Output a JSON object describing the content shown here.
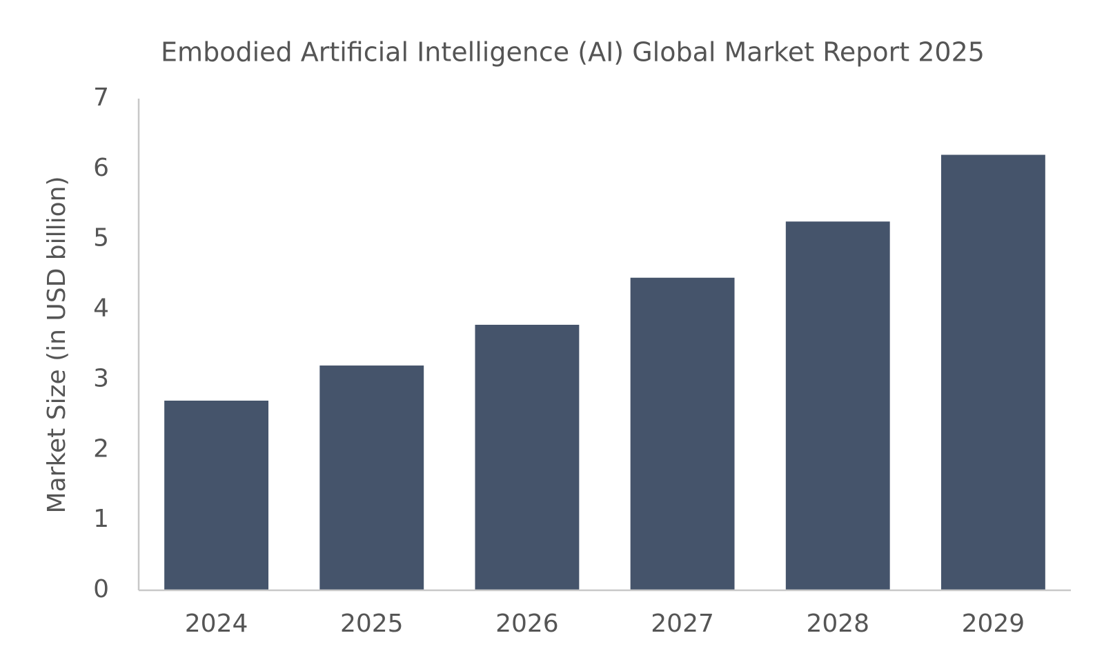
{
  "chart_data": {
    "type": "bar",
    "title": "Embodied Artificial Intelligence (AI) Global Market Report 2025",
    "y_label": "Market Size (in USD billion)",
    "categories": [
      "2024",
      "2025",
      "2026",
      "2027",
      "2028",
      "2029"
    ],
    "values": [
      2.7,
      3.2,
      3.78,
      4.45,
      5.25,
      6.2
    ],
    "color": "#45546b",
    "ylim": [
      0,
      7
    ],
    "yticks": [
      0,
      1,
      2,
      3,
      4,
      5,
      6,
      7
    ],
    "grid": false
  }
}
